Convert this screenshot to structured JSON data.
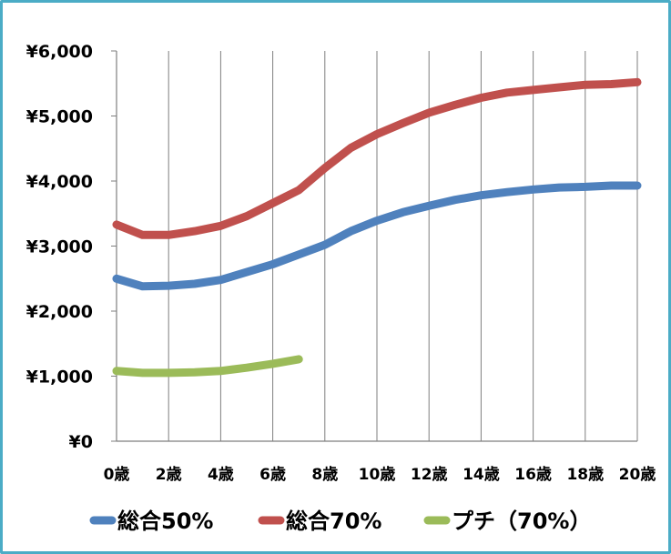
{
  "chart_data": {
    "type": "line",
    "title": "",
    "xlabel": "",
    "ylabel": "",
    "x": [
      0,
      1,
      2,
      3,
      4,
      5,
      6,
      7,
      8,
      9,
      10,
      11,
      12,
      13,
      14,
      15,
      16,
      17,
      18,
      19,
      20
    ],
    "x_tick_labels": [
      "0歳",
      "2歳",
      "4歳",
      "6歳",
      "8歳",
      "10歳",
      "12歳",
      "14歳",
      "16歳",
      "18歳",
      "20歳"
    ],
    "y_tick_labels": [
      "¥0",
      "¥1,000",
      "¥2,000",
      "¥3,000",
      "¥4,000",
      "¥5,000",
      "¥6,000"
    ],
    "ylim": [
      0,
      6000
    ],
    "grid": "vertical",
    "legend_position": "bottom",
    "series": [
      {
        "name": "総合50%",
        "color": "#4f81bd",
        "values": [
          2500,
          2380,
          2390,
          2420,
          2480,
          2600,
          2720,
          2870,
          3020,
          3230,
          3390,
          3520,
          3620,
          3710,
          3780,
          3830,
          3870,
          3900,
          3910,
          3930,
          3930
        ]
      },
      {
        "name": "総合70%",
        "color": "#c0504d",
        "values": [
          3330,
          3170,
          3170,
          3230,
          3310,
          3460,
          3660,
          3860,
          4200,
          4510,
          4720,
          4890,
          5050,
          5170,
          5280,
          5360,
          5400,
          5440,
          5480,
          5490,
          5520
        ]
      },
      {
        "name": "プチ（70%）",
        "color": "#9bbb59",
        "values": [
          1080,
          1050,
          1050,
          1060,
          1080,
          1130,
          1190,
          1260,
          null,
          null,
          null,
          null,
          null,
          null,
          null,
          null,
          null,
          null,
          null,
          null,
          null
        ]
      }
    ]
  }
}
